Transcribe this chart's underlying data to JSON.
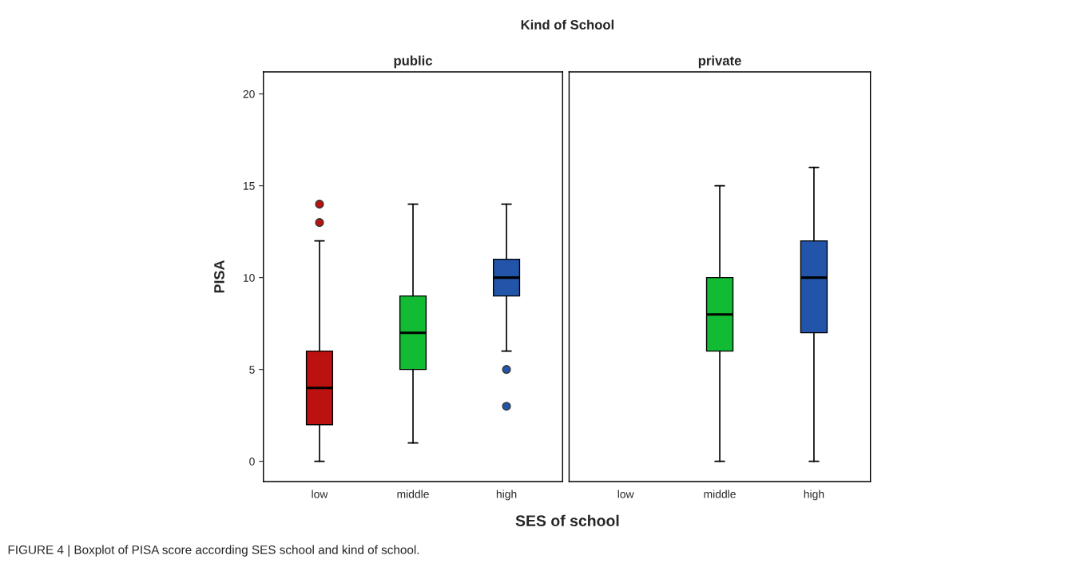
{
  "chart_data": [
    {
      "type": "box",
      "title": "public",
      "ylabel": "PISA",
      "xlabel": "SES of school",
      "categories": [
        "low",
        "middle",
        "high"
      ],
      "boxes": [
        {
          "low": 0,
          "q1": 2,
          "median": 4,
          "q3": 6,
          "high": 12,
          "outliers": [
            13,
            14
          ]
        },
        {
          "low": 1,
          "q1": 5,
          "median": 7,
          "q3": 9,
          "high": 14
        },
        {
          "low": 6,
          "q1": 9,
          "median": 10,
          "q3": 11,
          "high": 14,
          "outliers": [
            5,
            3
          ]
        }
      ],
      "colors": [
        "#bb1111",
        "#11bb33",
        "#2255aa"
      ],
      "ylim": [
        -1.1,
        21.2
      ],
      "yticks": [
        0,
        5,
        10,
        15,
        20
      ],
      "grid": false,
      "annotations": [
        "Kind of School",
        "FIGURE 4 | Boxplot of PISA score according SES school and kind of school."
      ]
    },
    {
      "type": "box",
      "title": "private",
      "categories": [
        "low",
        "middle",
        "high"
      ],
      "boxes": [
        null,
        {
          "low": 0,
          "q1": 6,
          "median": 8,
          "q3": 10,
          "high": 15
        },
        {
          "low": 0,
          "q1": 7,
          "median": 10,
          "q3": 12,
          "high": 16
        }
      ],
      "colors": [
        "#bb1111",
        "#11bb33",
        "#2255aa"
      ],
      "ylim": [
        -1.1,
        21.2
      ],
      "yticks": [
        0,
        5,
        10,
        15,
        20
      ],
      "grid": false,
      "tick_labels": "x"
    }
  ]
}
